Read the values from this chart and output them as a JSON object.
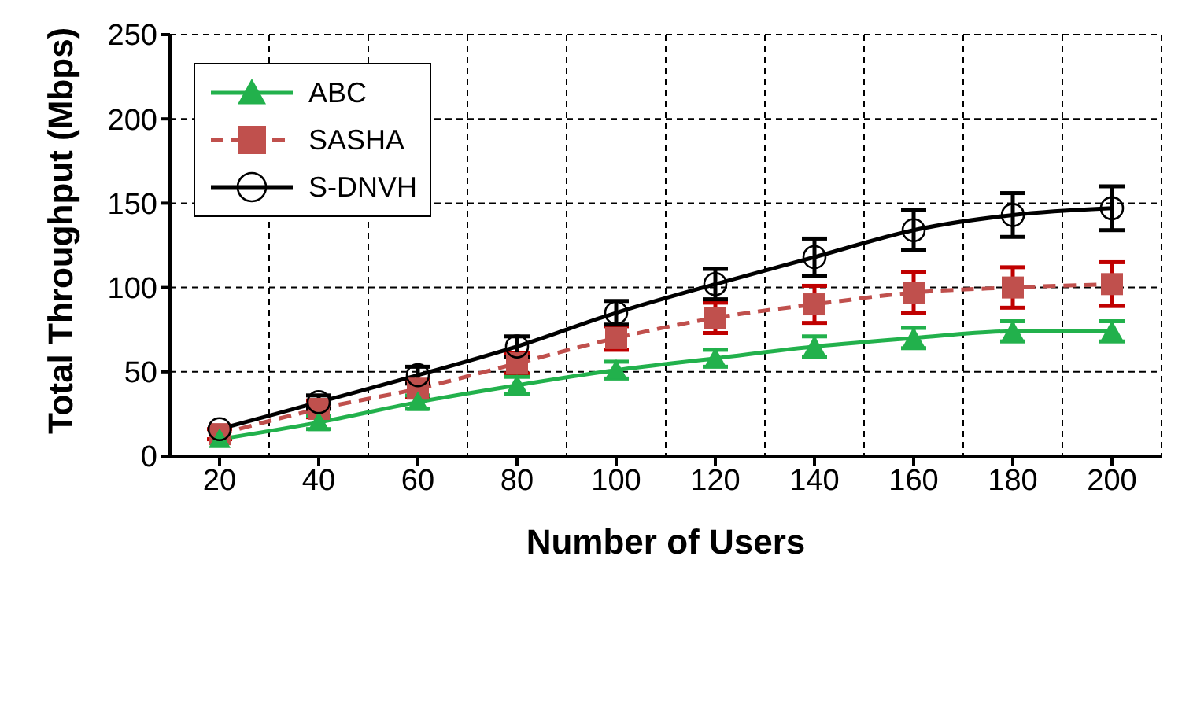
{
  "chart_data": {
    "type": "line",
    "xlabel": "Number of Users",
    "ylabel": "Total Throughput (Mbps)",
    "categories": [
      "20",
      "40",
      "60",
      "80",
      "100",
      "120",
      "140",
      "160",
      "180",
      "200"
    ],
    "series": [
      {
        "name": "ABC",
        "color": "#22b14c",
        "marker": "triangle",
        "line_style": "solid",
        "values": [
          10,
          20,
          32,
          42,
          51,
          58,
          65,
          70,
          74,
          74
        ],
        "errors": [
          null,
          4,
          4,
          5,
          5,
          5,
          6,
          6,
          6,
          6
        ]
      },
      {
        "name": "SASHA",
        "color": "#c0504d",
        "marker": "square",
        "line_style": "dashed",
        "values": [
          13,
          28,
          40,
          55,
          70,
          82,
          90,
          97,
          100,
          102
        ],
        "errors": [
          3,
          5,
          5,
          6,
          7,
          9,
          11,
          12,
          12,
          13
        ]
      },
      {
        "name": "S-DNVH",
        "color": "#000000",
        "marker": "circle",
        "line_style": "solid",
        "values": [
          16,
          32,
          48,
          65,
          85,
          102,
          118,
          134,
          143,
          147
        ],
        "errors": [
          null,
          4,
          5,
          6,
          7,
          9,
          11,
          12,
          13,
          13
        ]
      }
    ],
    "ylim": [
      0,
      250
    ],
    "yticks": [
      0,
      50,
      100,
      150,
      200,
      250
    ],
    "grid": true,
    "legend": "top left"
  }
}
